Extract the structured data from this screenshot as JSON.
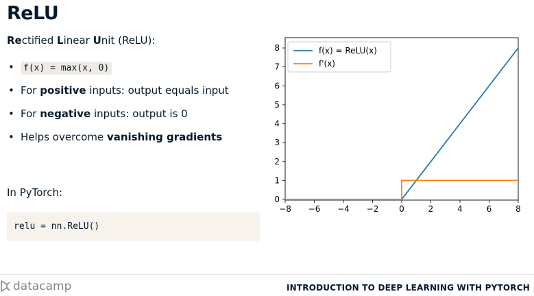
{
  "slide": {
    "title": "ReLU",
    "subtitle_parts": [
      "Re",
      "ctified ",
      "L",
      "inear ",
      "U",
      "nit (ReLU):"
    ],
    "bullets": [
      {
        "code": "f(x) = max(x, 0)"
      },
      {
        "pre": "For ",
        "bold": "positive",
        "post": " inputs: output equals input"
      },
      {
        "pre": "For ",
        "bold": "negative",
        "post": " inputs: output is 0"
      },
      {
        "pre": "Helps overcome ",
        "bold": "vanishing gradients",
        "post": ""
      }
    ],
    "pytorch_label": "In PyTorch:",
    "code": "relu = nn.ReLU()"
  },
  "footer": {
    "logo_text": "datacamp",
    "course_title": "INTRODUCTION TO DEEP LEARNING WITH PYTORCH"
  },
  "chart_data": {
    "type": "line",
    "xlim": [
      -8,
      8
    ],
    "ylim": [
      0,
      8
    ],
    "x_ticks": [
      "−8",
      "−6",
      "−4",
      "−2",
      "0",
      "2",
      "4",
      "6",
      "8"
    ],
    "y_ticks": [
      "0",
      "1",
      "2",
      "3",
      "4",
      "5",
      "6",
      "7",
      "8"
    ],
    "legend_placement": "top-left",
    "grid": false,
    "series": [
      {
        "name": "f(x) = ReLU(x)",
        "color": "#1f77b4",
        "x": [
          -8,
          0,
          8
        ],
        "y": [
          0,
          0,
          8
        ]
      },
      {
        "name": "f'(x)",
        "color": "#ff7f0e",
        "x": [
          -8,
          0,
          0,
          8
        ],
        "y": [
          0,
          0,
          1,
          1
        ]
      }
    ]
  },
  "colors": {
    "text": "#05192d",
    "code_bg": "#f7f3ec",
    "logo": "#7e848c"
  }
}
